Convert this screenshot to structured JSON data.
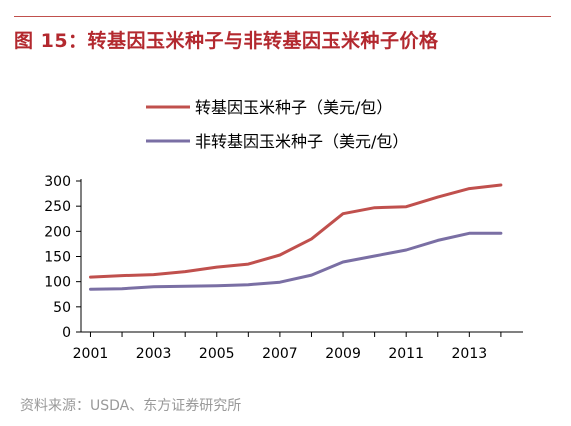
{
  "figure": {
    "title": "图 15：转基因玉米种子与非转基因玉米种子价格",
    "source": "资料来源：USDA、东方证券研究所"
  },
  "chart_data": {
    "type": "line",
    "title": "图 15：转基因玉米种子与非转基因玉米种子价格",
    "xlabel": "",
    "ylabel": "",
    "x": [
      2001,
      2002,
      2003,
      2004,
      2005,
      2006,
      2007,
      2008,
      2009,
      2010,
      2011,
      2012,
      2013,
      2014
    ],
    "x_tick_labels": [
      "2001",
      "2003",
      "2005",
      "2007",
      "2009",
      "2011",
      "2013"
    ],
    "ylim": [
      0,
      300
    ],
    "y_ticks": [
      0,
      50,
      100,
      150,
      200,
      250,
      300
    ],
    "grid": false,
    "legend_position": "top-right",
    "series": [
      {
        "name": "转基因玉米种子（美元/包）",
        "color": "#c0504d",
        "values": [
          109,
          112,
          114,
          120,
          129,
          135,
          153,
          185,
          235,
          247,
          249,
          268,
          285,
          292
        ]
      },
      {
        "name": "非转基因玉米种子（美元/包）",
        "color": "#7a6fa4",
        "values": [
          85,
          86,
          90,
          91,
          92,
          94,
          99,
          113,
          139,
          151,
          163,
          182,
          196,
          196
        ]
      }
    ]
  }
}
